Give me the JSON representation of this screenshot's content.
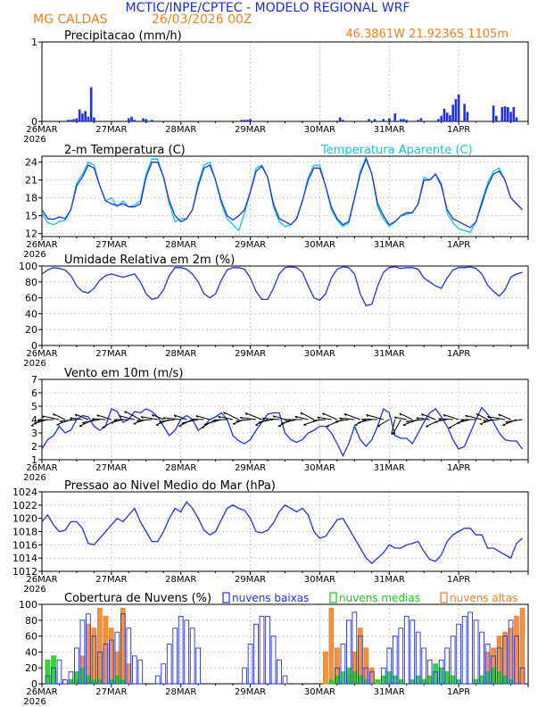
{
  "header": {
    "title": "MCTIC/INPE/CPTEC - MODELO REGIONAL WRF",
    "location": "MG CALDAS",
    "run": "26/03/2026 00Z",
    "coords": "46.3861W  21.9236S  1105m"
  },
  "colors": {
    "blue": "#2030e8",
    "cyan": "#10c8d8",
    "orange": "#f08020",
    "green": "#10d010",
    "title_blue": "#1a2cd8",
    "grid": "#a8a8a8"
  },
  "days": [
    "26MAR",
    "27MAR",
    "28MAR",
    "29MAR",
    "30MAR",
    "31MAR",
    "1APR"
  ],
  "year_label": "2026",
  "chart_data": [
    {
      "id": "precip",
      "type": "bar",
      "title": "Precipitacao (mm/h)",
      "ylim": [
        0,
        1
      ],
      "yticks": [
        0,
        1
      ],
      "x_hours": [
        9,
        10,
        11,
        12,
        13,
        14,
        15,
        16,
        17,
        18,
        30,
        31,
        32,
        35,
        36,
        38,
        69,
        70,
        71,
        72,
        103,
        104,
        113,
        115,
        118,
        120,
        122,
        124,
        125,
        126,
        130,
        131,
        137,
        138,
        139,
        140,
        141,
        142,
        143,
        144,
        146,
        147,
        156,
        157,
        159,
        160,
        161,
        162,
        163,
        164
      ],
      "values": [
        0.02,
        0.02,
        0.03,
        0.04,
        0.15,
        0.1,
        0.13,
        0.06,
        0.43,
        0.05,
        0.04,
        0.06,
        0.02,
        0.04,
        0.03,
        0.02,
        0.02,
        0.02,
        0.02,
        0.03,
        0.05,
        0.02,
        0.03,
        0.03,
        0.03,
        0.04,
        0.1,
        0.03,
        0.03,
        0.02,
        0.02,
        0.04,
        0.03,
        0.07,
        0.16,
        0.11,
        0.08,
        0.21,
        0.28,
        0.34,
        0.22,
        0.12,
        0.2,
        0.07,
        0.18,
        0.19,
        0.18,
        0.12,
        0.18,
        0.05
      ]
    },
    {
      "id": "temp",
      "type": "line",
      "title": "2-m Temperatura (C)",
      "ylim": [
        11.5,
        25
      ],
      "yticks": [
        12,
        15,
        18,
        21,
        24
      ],
      "hours": [
        0,
        2,
        4,
        6,
        8,
        10,
        12,
        14,
        16,
        18,
        20,
        22,
        24,
        26,
        28,
        30,
        32,
        34,
        36,
        38,
        40,
        42,
        44,
        46,
        48,
        50,
        52,
        54,
        56,
        58,
        60,
        62,
        64,
        66,
        68,
        70,
        72,
        74,
        76,
        78,
        80,
        82,
        84,
        86,
        88,
        90,
        92,
        94,
        96,
        98,
        100,
        102,
        104,
        106,
        108,
        110,
        112,
        114,
        116,
        118,
        120,
        122,
        124,
        126,
        128,
        130,
        132,
        134,
        136,
        138,
        140,
        142,
        144,
        146,
        148,
        150,
        152,
        154,
        156,
        158,
        160,
        162,
        164,
        166
      ],
      "series": [
        {
          "name": "2-m Temperatura (C)",
          "values": [
            16,
            14.5,
            14.4,
            14.8,
            14.5,
            16,
            20,
            21.5,
            23.5,
            23,
            20,
            17.5,
            17,
            16.7,
            17,
            16.5,
            16.5,
            17,
            21.5,
            24,
            24,
            21.5,
            17.5,
            15,
            14,
            14.5,
            16,
            20,
            23,
            23.5,
            21,
            17.5,
            15,
            14.3,
            15,
            16,
            19,
            22.5,
            23.3,
            21.5,
            17,
            14.5,
            14,
            13.5,
            14.5,
            17.5,
            21,
            23,
            23,
            20,
            16.5,
            14.5,
            13.5,
            14,
            18,
            22,
            24.5,
            22,
            17,
            15,
            13.5,
            14,
            15,
            15.5,
            15.5,
            17,
            21,
            21,
            22,
            20,
            16,
            14.5,
            14,
            13.5,
            13,
            14,
            17,
            20,
            22,
            22.5,
            21,
            18,
            17,
            16
          ]
        },
        {
          "name": "Temperatura Aparente (C)",
          "values": [
            15.5,
            13.8,
            13.5,
            14,
            14.2,
            16,
            20.5,
            22,
            24,
            23.5,
            20,
            17.5,
            18,
            16.5,
            17.5,
            16.5,
            16.8,
            17.5,
            22,
            24.5,
            24.5,
            21.5,
            17,
            14,
            14.5,
            14.5,
            16,
            20.5,
            23.5,
            24,
            21,
            17,
            14.5,
            13.5,
            12.5,
            15.5,
            19,
            23,
            23.5,
            21.5,
            16.5,
            14,
            13.2,
            13.5,
            14.5,
            17.5,
            21.5,
            23.5,
            23.5,
            20,
            16,
            14.2,
            13.2,
            13.8,
            18,
            22.5,
            24.8,
            22,
            16.5,
            14.5,
            13.2,
            14,
            15,
            15.2,
            15.5,
            17,
            21.5,
            21,
            22,
            20.5,
            15.5,
            13.8,
            12.8,
            12.5,
            12.2,
            14,
            17.5,
            20.5,
            22.5,
            23,
            21,
            18,
            17,
            16
          ]
        }
      ],
      "legend": "Temperatura Aparente (C)"
    },
    {
      "id": "rh",
      "type": "line",
      "title": "Umidade Relativa em 2m (%)",
      "ylim": [
        0,
        100
      ],
      "yticks": [
        0,
        20,
        40,
        60,
        80,
        100
      ],
      "hours": [
        0,
        2,
        4,
        6,
        8,
        10,
        12,
        14,
        16,
        18,
        20,
        22,
        24,
        26,
        28,
        30,
        32,
        34,
        36,
        38,
        40,
        42,
        44,
        46,
        48,
        50,
        52,
        54,
        56,
        58,
        60,
        62,
        64,
        66,
        68,
        70,
        72,
        74,
        76,
        78,
        80,
        82,
        84,
        86,
        88,
        90,
        92,
        94,
        96,
        98,
        100,
        102,
        104,
        106,
        108,
        110,
        112,
        114,
        116,
        118,
        120,
        122,
        124,
        126,
        128,
        130,
        132,
        134,
        136,
        138,
        140,
        142,
        144,
        146,
        148,
        150,
        152,
        154,
        156,
        158,
        160,
        162,
        164,
        166
      ],
      "values": [
        90,
        95,
        98,
        97,
        95,
        88,
        75,
        68,
        66,
        72,
        82,
        88,
        90,
        88,
        86,
        88,
        90,
        80,
        65,
        58,
        60,
        70,
        88,
        98,
        98,
        96,
        90,
        80,
        65,
        60,
        65,
        82,
        95,
        98,
        98,
        96,
        85,
        68,
        58,
        58,
        72,
        90,
        98,
        99,
        98,
        92,
        75,
        60,
        57,
        65,
        85,
        96,
        99,
        98,
        90,
        65,
        50,
        52,
        75,
        92,
        98,
        99,
        97,
        98,
        98,
        96,
        85,
        80,
        75,
        72,
        85,
        95,
        98,
        98,
        99,
        97,
        90,
        76,
        68,
        62,
        70,
        86,
        90,
        92
      ]
    },
    {
      "id": "wind",
      "type": "line",
      "title": "Vento em 10m (m/s)",
      "ylim": [
        1,
        7
      ],
      "yticks": [
        1,
        2,
        3,
        4,
        5,
        6,
        7
      ],
      "hours": [
        0,
        2,
        4,
        6,
        8,
        10,
        12,
        14,
        16,
        18,
        20,
        22,
        24,
        26,
        28,
        30,
        32,
        34,
        36,
        38,
        40,
        42,
        44,
        46,
        48,
        50,
        52,
        54,
        56,
        58,
        60,
        62,
        64,
        66,
        68,
        70,
        72,
        74,
        76,
        78,
        80,
        82,
        84,
        86,
        88,
        90,
        92,
        94,
        96,
        98,
        100,
        102,
        104,
        106,
        108,
        110,
        112,
        114,
        116,
        118,
        120,
        122,
        124,
        126,
        128,
        130,
        132,
        134,
        136,
        138,
        140,
        142,
        144,
        146,
        148,
        150,
        152,
        154,
        156,
        158,
        160,
        162,
        164,
        166
      ],
      "values": [
        1.8,
        2.5,
        2.8,
        3.5,
        3,
        3.2,
        4,
        4.3,
        4.2,
        3.5,
        3.2,
        3.5,
        4.8,
        4.6,
        3.8,
        4,
        4.6,
        4.5,
        4.8,
        4.6,
        4.2,
        3.5,
        2.8,
        3.2,
        4,
        4.3,
        4,
        3.2,
        3.5,
        4,
        4.2,
        4.5,
        4,
        2.8,
        2.4,
        2.2,
        2.5,
        3.2,
        3.8,
        4.4,
        4.5,
        4.5,
        3,
        2.5,
        2.3,
        2.5,
        3,
        3.2,
        3.5,
        3.5,
        3,
        2.2,
        1.3,
        2.2,
        3.5,
        2.5,
        2,
        2.5,
        3.5,
        4.8,
        4.5,
        2.8,
        2.6,
        2.6,
        2.2,
        3,
        3.8,
        4.5,
        4.8,
        4.2,
        3.5,
        2.5,
        1.8,
        2,
        3,
        4,
        4.9,
        4.4,
        3.8,
        3,
        2.5,
        2.4,
        2.4,
        1.8
      ]
    },
    {
      "id": "pressure",
      "type": "line",
      "title": "Pressao ao Nivel Medio do Mar (hPa)",
      "ylim": [
        1012,
        1024
      ],
      "yticks": [
        1012,
        1014,
        1016,
        1018,
        1020,
        1022,
        1024
      ],
      "hours": [
        0,
        2,
        4,
        6,
        8,
        10,
        12,
        14,
        16,
        18,
        20,
        22,
        24,
        26,
        28,
        30,
        32,
        34,
        36,
        38,
        40,
        42,
        44,
        46,
        48,
        50,
        52,
        54,
        56,
        58,
        60,
        62,
        64,
        66,
        68,
        70,
        72,
        74,
        76,
        78,
        80,
        82,
        84,
        86,
        88,
        90,
        92,
        94,
        96,
        98,
        100,
        102,
        104,
        106,
        108,
        110,
        112,
        114,
        116,
        118,
        120,
        122,
        124,
        126,
        128,
        130,
        132,
        134,
        136,
        138,
        140,
        142,
        144,
        146,
        148,
        150,
        152,
        154,
        156,
        158,
        160,
        162,
        164,
        166
      ],
      "values": [
        1019.5,
        1020.5,
        1019,
        1018,
        1018.2,
        1019.5,
        1019.5,
        1018.5,
        1016.2,
        1016,
        1017,
        1018,
        1019,
        1020,
        1019.5,
        1020.5,
        1021.5,
        1019.5,
        1018,
        1016.5,
        1016.5,
        1018,
        1020,
        1021.5,
        1021,
        1022.5,
        1021.5,
        1020,
        1018.2,
        1017.5,
        1018,
        1019.8,
        1021.5,
        1022,
        1021.5,
        1021.2,
        1020,
        1018,
        1017.8,
        1018.2,
        1019.3,
        1021,
        1022,
        1021.5,
        1021,
        1021.5,
        1020.5,
        1018,
        1017,
        1017.3,
        1018.5,
        1019.8,
        1020,
        1018.5,
        1017,
        1015.5,
        1014,
        1013.2,
        1014,
        1014.8,
        1016,
        1015.5,
        1015.5,
        1016,
        1016.2,
        1016.5,
        1015,
        1013.8,
        1013.5,
        1014.5,
        1016.5,
        1017.5,
        1018,
        1018.5,
        1018.5,
        1017.5,
        1017.5,
        1015.5,
        1015.5,
        1015,
        1014.5,
        1014,
        1016.2,
        1017
      ]
    },
    {
      "id": "clouds",
      "type": "bar",
      "title": "Cobertura de Nuvens (%)",
      "ylim": [
        0,
        100
      ],
      "yticks": [
        0,
        20,
        40,
        60,
        80,
        100
      ],
      "hours": [
        2,
        4,
        6,
        8,
        10,
        12,
        14,
        16,
        18,
        20,
        22,
        24,
        26,
        28,
        30,
        32,
        34,
        36,
        38,
        40,
        42,
        44,
        46,
        48,
        50,
        52,
        54,
        56,
        58,
        60,
        62,
        64,
        66,
        68,
        70,
        72,
        74,
        76,
        78,
        80,
        82,
        84,
        86,
        88,
        90,
        92,
        94,
        96,
        98,
        100,
        102,
        104,
        106,
        108,
        110,
        112,
        114,
        116,
        118,
        120,
        122,
        124,
        126,
        128,
        130,
        132,
        134,
        136,
        138,
        140,
        142,
        144,
        146,
        148,
        150,
        152,
        154,
        156,
        158,
        160,
        162,
        164,
        166
      ],
      "series": [
        {
          "name": "nuvens baixas",
          "values": [
            10,
            20,
            30,
            5,
            15,
            45,
            80,
            88,
            60,
            40,
            50,
            55,
            65,
            88,
            70,
            35,
            30,
            0,
            0,
            10,
            25,
            50,
            70,
            85,
            80,
            70,
            45,
            0,
            0,
            0,
            0,
            0,
            0,
            0,
            20,
            50,
            75,
            85,
            85,
            60,
            30,
            10,
            0,
            0,
            0,
            0,
            0,
            0,
            0,
            0,
            20,
            50,
            80,
            90,
            60,
            20,
            15,
            0,
            20,
            45,
            60,
            70,
            85,
            80,
            65,
            45,
            30,
            15,
            30,
            45,
            60,
            75,
            85,
            90,
            80,
            65,
            50,
            35,
            45,
            60,
            80,
            60,
            20
          ]
        },
        {
          "name": "nuvens medias",
          "values": [
            30,
            35,
            0,
            0,
            5,
            15,
            20,
            10,
            5,
            5,
            0,
            5,
            10,
            5,
            0,
            0,
            0,
            0,
            0,
            0,
            0,
            0,
            0,
            0,
            0,
            0,
            0,
            0,
            0,
            0,
            0,
            0,
            0,
            0,
            0,
            0,
            0,
            0,
            0,
            0,
            0,
            0,
            0,
            0,
            0,
            0,
            0,
            0,
            0,
            5,
            10,
            15,
            20,
            15,
            10,
            5,
            0,
            5,
            10,
            15,
            10,
            5,
            0,
            5,
            10,
            5,
            10,
            25,
            20,
            15,
            10,
            5,
            0,
            0,
            5,
            10,
            15,
            20,
            15,
            10,
            5,
            0,
            0
          ]
        },
        {
          "name": "nuvens altas",
          "values": [
            0,
            0,
            0,
            0,
            0,
            5,
            35,
            75,
            70,
            95,
            85,
            70,
            40,
            95,
            25,
            0,
            0,
            0,
            0,
            0,
            0,
            0,
            0,
            0,
            0,
            0,
            0,
            0,
            0,
            0,
            0,
            0,
            0,
            0,
            0,
            0,
            0,
            0,
            0,
            0,
            0,
            0,
            0,
            0,
            0,
            0,
            0,
            0,
            40,
            95,
            45,
            0,
            10,
            40,
            70,
            45,
            20,
            0,
            0,
            0,
            0,
            0,
            0,
            0,
            0,
            0,
            0,
            0,
            0,
            0,
            0,
            0,
            0,
            0,
            0,
            0,
            40,
            45,
            60,
            65,
            70,
            85,
            95
          ]
        }
      ],
      "legend": [
        "nuvens baixas",
        "nuvens medias",
        "nuvens altas"
      ]
    }
  ]
}
